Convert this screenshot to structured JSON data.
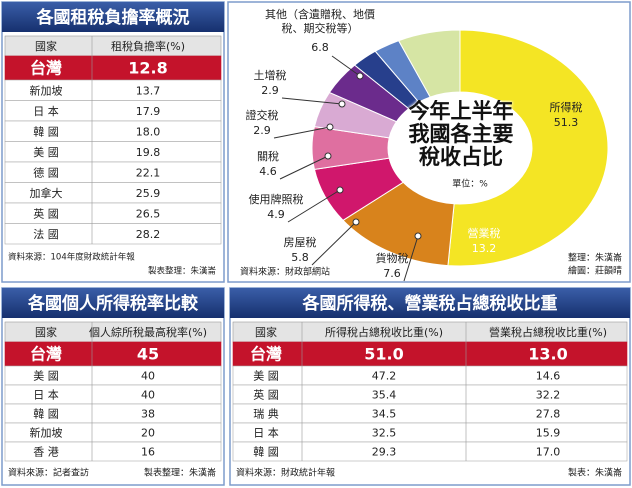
{
  "tax_burden_table": {
    "title": "各國租稅負擔率概況",
    "columns": [
      "國家",
      "租稅負擔率(%)"
    ],
    "rows": [
      [
        "台灣",
        "12.8"
      ],
      [
        "新加坡",
        "13.7"
      ],
      [
        "日 本",
        "17.9"
      ],
      [
        "韓 國",
        "18.0"
      ],
      [
        "美 國",
        "19.8"
      ],
      [
        "德 國",
        "22.1"
      ],
      [
        "加拿大",
        "25.9"
      ],
      [
        "英 國",
        "26.5"
      ],
      [
        "法 國",
        "28.2"
      ]
    ],
    "source": "資料來源：104年度財政統計年報",
    "credit": "製表整理：朱漢崙"
  },
  "chart_data": {
    "type": "pie",
    "title": "今年上半年我國各主要稅收占比",
    "unit": "單位：%",
    "categories": [
      "所得稅",
      "營業稅",
      "貨物稅",
      "房屋稅",
      "使用牌照稅",
      "關稅",
      "證交稅",
      "土增稅",
      "其他（含遺贈稅、地價稅、期交稅等）"
    ],
    "values": [
      51.3,
      13.2,
      7.6,
      5.8,
      4.9,
      4.6,
      2.9,
      2.9,
      6.8
    ],
    "colors": [
      "#f4e524",
      "#d8831c",
      "#d0176c",
      "#df6fa0",
      "#d9aad3",
      "#6b2b8c",
      "#273f8c",
      "#5d82c6",
      "#d6e5a4"
    ],
    "source": "資料來源：財政部網站",
    "credits": [
      "整理：朱漢崙",
      "繪圖：莊韻晴"
    ]
  },
  "income_tax_table": {
    "title": "各國個人所得稅率比較",
    "columns": [
      "國家",
      "個人綜所稅最高稅率(%)"
    ],
    "rows": [
      [
        "台灣",
        "45"
      ],
      [
        "美 國",
        "40"
      ],
      [
        "日 本",
        "40"
      ],
      [
        "韓 國",
        "38"
      ],
      [
        "新加坡",
        "20"
      ],
      [
        "香 港",
        "16"
      ]
    ],
    "source": "資料來源：記者查訪",
    "credit": "製表整理：朱漢崙"
  },
  "share_table": {
    "title": "各國所得稅、營業稅占總稅收比重",
    "columns": [
      "國家",
      "所得稅占總稅收比重(%)",
      "營業稅占總稅收比重(%)"
    ],
    "rows": [
      [
        "台灣",
        "51.0",
        "13.0"
      ],
      [
        "美 國",
        "47.2",
        "14.6"
      ],
      [
        "英 國",
        "35.4",
        "32.2"
      ],
      [
        "瑞 典",
        "34.5",
        "27.8"
      ],
      [
        "日 本",
        "32.5",
        "15.9"
      ],
      [
        "韓 國",
        "29.3",
        "17.0"
      ]
    ],
    "source": "資料來源：財政統計年報",
    "credit": "製表：朱漢崙"
  }
}
